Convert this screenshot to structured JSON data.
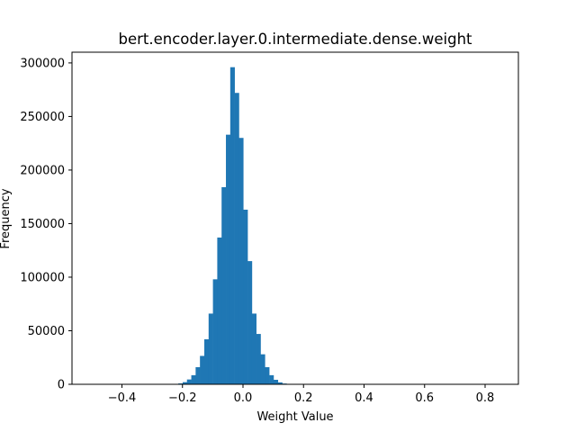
{
  "chart_data": {
    "type": "bar",
    "title": "bert.encoder.layer.0.intermediate.dense.weight",
    "xlabel": "Weight Value",
    "ylabel": "Frequency",
    "xlim": [
      -0.565,
      0.91
    ],
    "ylim": [
      0,
      310000
    ],
    "xticks": [
      -0.4,
      -0.2,
      0.0,
      0.2,
      0.4,
      0.6,
      0.8
    ],
    "xtick_labels": [
      "−0.4",
      "−0.2",
      "0.0",
      "0.2",
      "0.4",
      "0.6",
      "0.8"
    ],
    "yticks": [
      0,
      50000,
      100000,
      150000,
      200000,
      250000,
      300000
    ],
    "ytick_labels": [
      "0",
      "50000",
      "100000",
      "150000",
      "200000",
      "250000",
      "300000"
    ],
    "bin_width": 0.0143,
    "bin_lefts": [
      -0.228,
      -0.2137,
      -0.1994,
      -0.1851,
      -0.1708,
      -0.1565,
      -0.1422,
      -0.1279,
      -0.1136,
      -0.0993,
      -0.085,
      -0.0707,
      -0.0564,
      -0.0421,
      -0.0278,
      -0.0135,
      0.0008,
      0.0151,
      0.0294,
      0.0437,
      0.058,
      0.0723,
      0.0866,
      0.1009,
      0.1152,
      0.1295,
      0.1438,
      0.1581
    ],
    "values": [
      300,
      800,
      2000,
      4500,
      8500,
      16000,
      26500,
      42000,
      66000,
      98000,
      137000,
      184000,
      233000,
      296000,
      272000,
      230000,
      163000,
      115000,
      66000,
      47000,
      28000,
      16000,
      8500,
      4200,
      1800,
      700,
      250,
      80
    ],
    "bar_color": "#1f77b4",
    "grid": false,
    "legend": "none"
  }
}
